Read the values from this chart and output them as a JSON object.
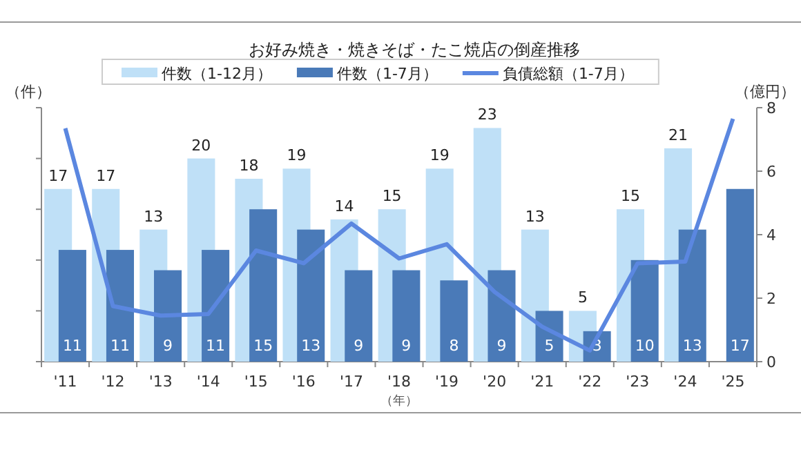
{
  "chart_data": {
    "type": "bar",
    "title": "お好み焼き・焼きそば・たこ焼店の倒産推移",
    "xlabel": "（年）",
    "ylabel": "（件）",
    "y2label": "（億円）",
    "categories": [
      "'11",
      "'12",
      "'13",
      "'14",
      "'15",
      "'16",
      "'17",
      "'18",
      "'19",
      "'20",
      "'21",
      "'22",
      "'23",
      "'24",
      "'25"
    ],
    "series": [
      {
        "name": "件数（1-12月）",
        "color": "#bfe0f7",
        "values": [
          17,
          17,
          13,
          20,
          18,
          19,
          14,
          15,
          19,
          23,
          13,
          5,
          15,
          21,
          null
        ],
        "value_labels": [
          "17",
          "17",
          "13",
          "20",
          "18",
          "19",
          "14",
          "15",
          "19",
          "23",
          "13",
          "5",
          "15",
          "21",
          null
        ]
      },
      {
        "name": "件数（1-7月）",
        "color": "#4a7ab8",
        "values": [
          11,
          11,
          9,
          11,
          15,
          13,
          9,
          9,
          8,
          9,
          5,
          3,
          10,
          13,
          17
        ],
        "value_labels": [
          "11",
          "11",
          "9",
          "11",
          "15",
          "13",
          "9",
          "9",
          "8",
          "9",
          "5",
          "3",
          "10",
          "13",
          "17"
        ]
      },
      {
        "name": "負債総額（1-7月）",
        "type": "line",
        "axis": "y2",
        "color": "#5b87e0",
        "values": [
          7.35,
          1.75,
          1.45,
          1.5,
          3.5,
          3.1,
          4.35,
          3.25,
          3.7,
          2.2,
          1.1,
          0.35,
          3.1,
          3.15,
          7.65
        ]
      }
    ],
    "ylim": [
      0,
      25
    ],
    "yticks": [
      {
        "value": 0,
        "label": null
      },
      {
        "value": 5,
        "label": null
      },
      {
        "value": 10,
        "label": null
      },
      {
        "value": 15,
        "label": null
      },
      {
        "value": 20,
        "label": null
      },
      {
        "value": 25,
        "label": null
      }
    ],
    "y2lim": [
      0,
      8
    ],
    "y2ticks": [
      0,
      2,
      4,
      6,
      8
    ],
    "legend": "top",
    "grid": false,
    "marker": "none",
    "line_style": "solid"
  }
}
